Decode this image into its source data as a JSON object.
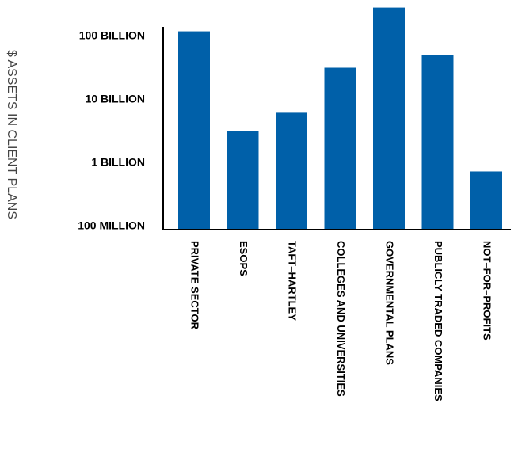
{
  "chart_data": {
    "type": "bar",
    "ylabel": "$ ASSETS IN CLIENT PLANS",
    "y_scale": "log",
    "ylim": [
      100000000,
      400000000000
    ],
    "yticks": [
      {
        "value": 100000000,
        "label": "100 MILLION"
      },
      {
        "value": 1000000000,
        "label": "1 BILLION"
      },
      {
        "value": 10000000000,
        "label": "10 BILLION"
      },
      {
        "value": 100000000000,
        "label": "100 BILLION"
      }
    ],
    "categories": [
      "PRIVATE SECTOR",
      "ESOPS",
      "TAFT–HARTLEY",
      "COLLEGES AND UNIVERSITIES",
      "GOVERNMENTAL PLANS",
      "PUBLICLY TRADED COMPANIES",
      "NOT–FOR–PROFITS"
    ],
    "values": [
      135000000000,
      3600000000,
      7000000000,
      36000000000,
      320000000000,
      57000000000,
      830000000
    ],
    "bar_color": "#0060a9",
    "grid": false
  }
}
